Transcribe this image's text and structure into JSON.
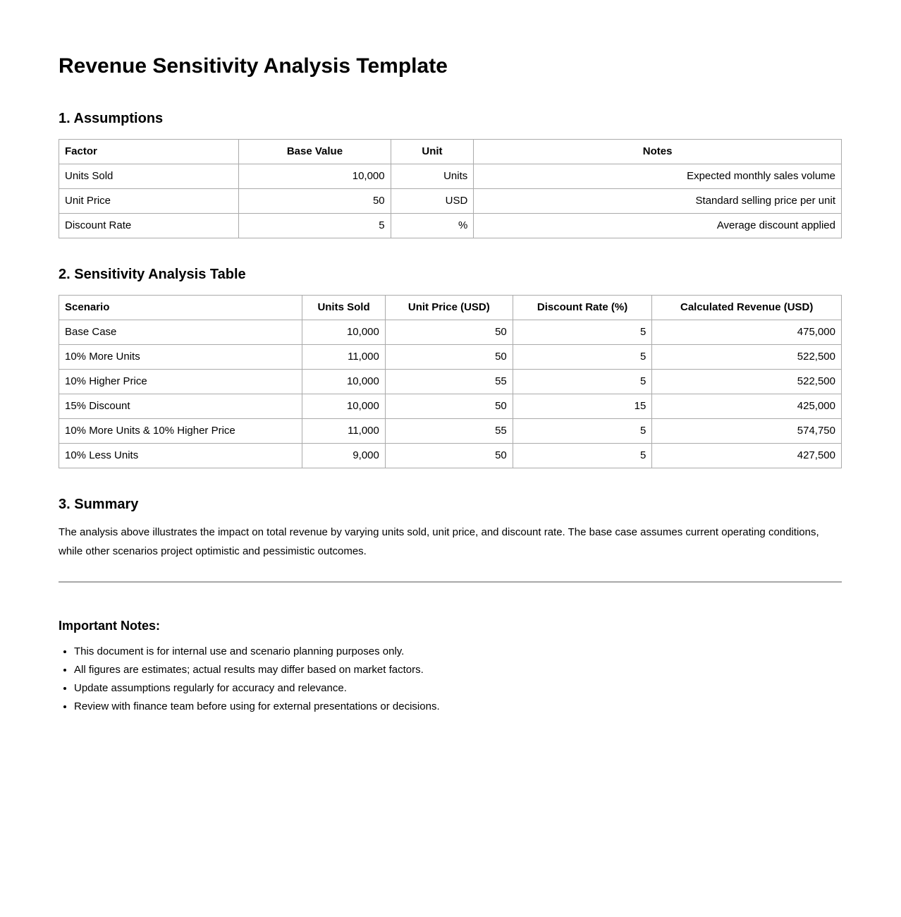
{
  "document": {
    "title": "Revenue Sensitivity Analysis Template"
  },
  "assumptions": {
    "heading": "1. Assumptions",
    "table": {
      "headers": [
        "Factor",
        "Base Value",
        "Unit",
        "Notes"
      ],
      "rows": [
        [
          "Units Sold",
          "10,000",
          "Units",
          "Expected monthly sales volume"
        ],
        [
          "Unit Price",
          "50",
          "USD",
          "Standard selling price per unit"
        ],
        [
          "Discount Rate",
          "5",
          "%",
          "Average discount applied"
        ]
      ]
    }
  },
  "sensitivity": {
    "heading": "2. Sensitivity Analysis Table",
    "table": {
      "headers": [
        "Scenario",
        "Units Sold",
        "Unit Price (USD)",
        "Discount Rate (%)",
        "Calculated Revenue (USD)"
      ],
      "rows": [
        [
          "Base Case",
          "10,000",
          "50",
          "5",
          "475,000"
        ],
        [
          "10% More Units",
          "11,000",
          "50",
          "5",
          "522,500"
        ],
        [
          "10% Higher Price",
          "10,000",
          "55",
          "5",
          "522,500"
        ],
        [
          "15% Discount",
          "10,000",
          "50",
          "15",
          "425,000"
        ],
        [
          "10% More Units & 10% Higher Price",
          "11,000",
          "55",
          "5",
          "574,750"
        ],
        [
          "10% Less Units",
          "9,000",
          "50",
          "5",
          "427,500"
        ]
      ]
    }
  },
  "summary": {
    "heading": "3. Summary",
    "text": "The analysis above illustrates the impact on total revenue by varying units sold, unit price, and discount rate. The base case assumes current operating conditions, while other scenarios project optimistic and pessimistic outcomes."
  },
  "notes": {
    "heading": "Important Notes:",
    "items": [
      "This document is for internal use and scenario planning purposes only.",
      "All figures are estimates; actual results may differ based on market factors.",
      "Update assumptions regularly for accuracy and relevance.",
      "Review with finance team before using for external presentations or decisions."
    ]
  }
}
